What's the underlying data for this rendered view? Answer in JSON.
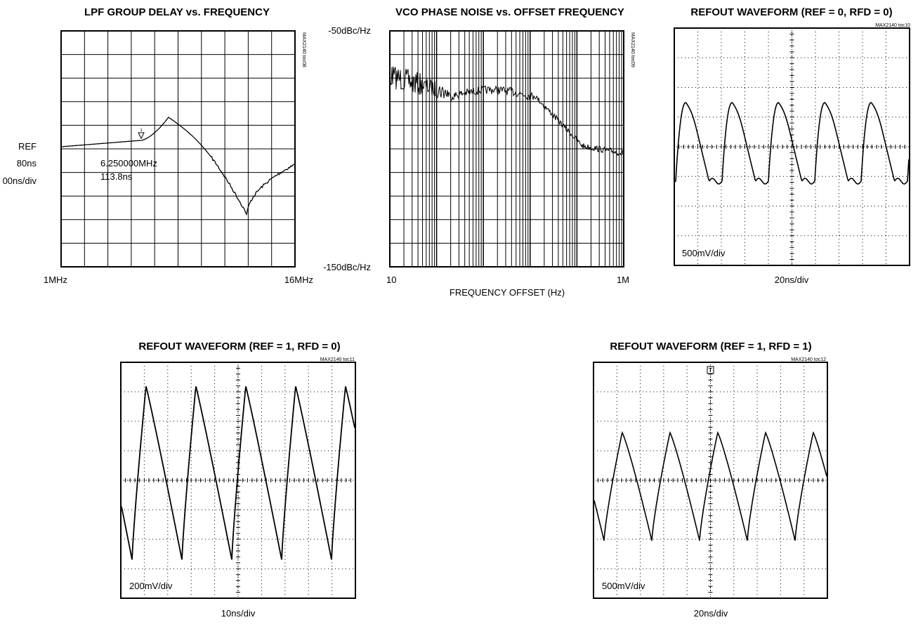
{
  "chart_data": [
    {
      "type": "line",
      "title": "LPF GROUP DELAY vs. FREQUENCY",
      "tag": "MAX2140 toc08",
      "ref_labels": [
        "REF",
        "80ns",
        "00ns/div"
      ],
      "x_start_label": "1MHz",
      "x_end_label": "16MHz",
      "marker_symbol": "1",
      "marker_freq": "6.250000MHz",
      "marker_value": "113.8ns",
      "grid": true
    },
    {
      "type": "line",
      "title": "VCO PHASE NOISE vs. OFFSET FREQUENCY",
      "tag": "MAX2140 toc09",
      "xlabel": "FREQUENCY OFFSET (Hz)",
      "x_start_label": "10",
      "x_end_label": "1M",
      "y_top_label": "-50dBc/Hz",
      "y_bottom_label": "-150dBc/Hz",
      "x_scale": "log",
      "grid": true
    },
    {
      "type": "line",
      "title": "REFOUT WAVEFORM (REF = 0, RFD = 0)",
      "tag": "MAX2140 toc10",
      "vdiv": "500mV/div",
      "tdiv": "20ns/div"
    },
    {
      "type": "line",
      "title": "REFOUT WAVEFORM (REF = 1, RFD = 0)",
      "tag": "MAX2140 toc11",
      "vdiv": "200mV/div",
      "tdiv": "10ns/div"
    },
    {
      "type": "line",
      "title": "REFOUT WAVEFORM (REF = 1, RFD = 1)",
      "tag": "MAX2140 toc12",
      "trigger": "T",
      "vdiv": "500mV/div",
      "tdiv": "20ns/div"
    }
  ]
}
